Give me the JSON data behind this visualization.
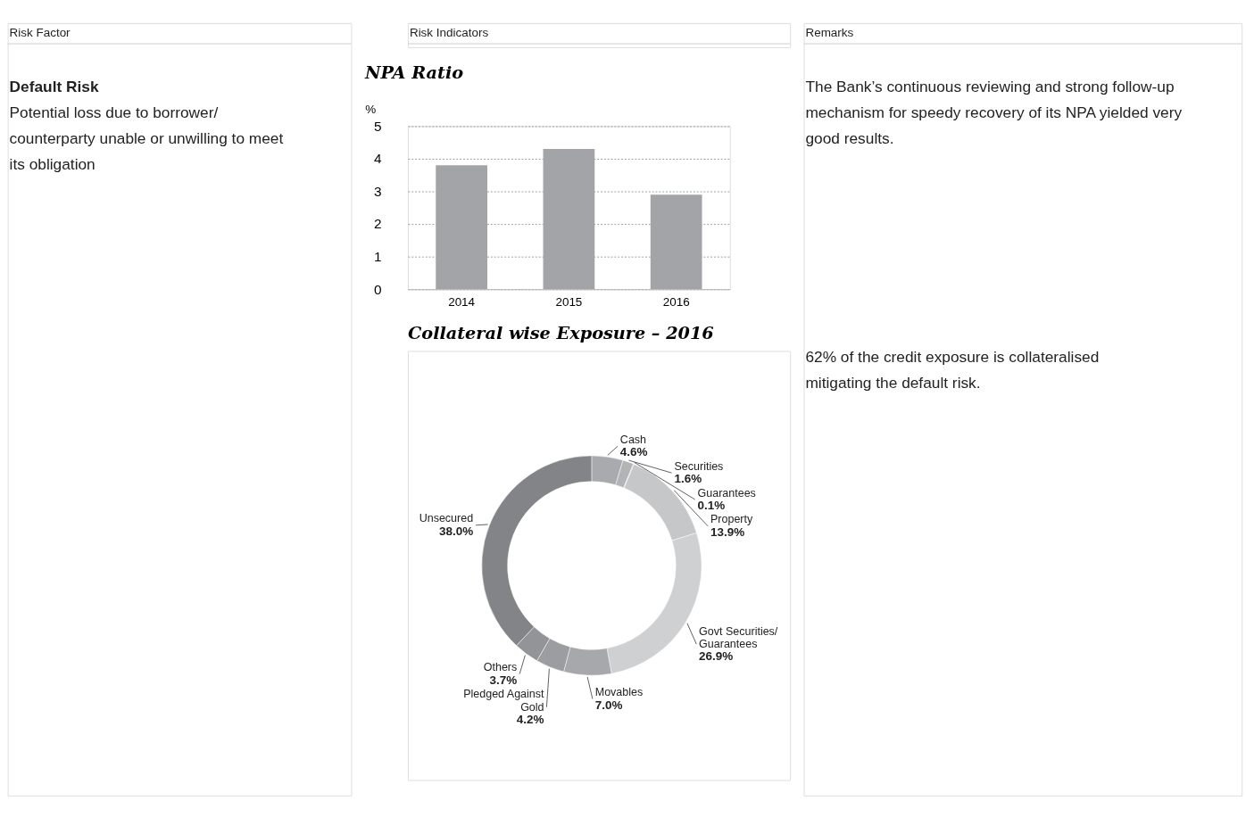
{
  "chart_data": [
    {
      "type": "other",
      "title": "Risk Factor",
      "annotations": [
        "Default Risk",
        "Potential loss due to borrower/ counterparty unable or unwilling to meet its obligation"
      ]
    },
    {
      "type": "other",
      "title": "Risk Indicators"
    },
    {
      "type": "bar",
      "title": "NPA Ratio",
      "ylabel": "%",
      "categories": [
        "2014",
        "2015",
        "2016"
      ],
      "values": [
        3.8,
        4.3,
        2.9
      ],
      "color": "#a3a4a7",
      "ylim": [
        0,
        5
      ],
      "yticks": [
        0,
        1,
        2,
        3,
        4,
        5
      ],
      "grid": "y"
    },
    {
      "type": "donut",
      "title": "Collateral wise Exposure – 2016",
      "categories": [
        "Cash",
        "Securities",
        "Guarantees",
        "Property",
        "Govt Securities/ Guarantees",
        "Movables",
        "Pledged Against Gold",
        "Others",
        "Unsecured"
      ],
      "values": [
        4.6,
        1.6,
        0.1,
        13.9,
        26.9,
        7.0,
        4.2,
        3.7,
        38.0
      ],
      "colors": [
        "#a9aaad",
        "#b3b4b6",
        "#b8b9bb",
        "#c6c7c9",
        "#cfd0d2",
        "#a7a8ab",
        "#9c9da0",
        "#939497",
        "#838487"
      ],
      "value_labels": [
        "4.6%",
        "1.6%",
        "0.1%",
        "13.9%",
        "26.9%",
        "7.0%",
        "4.2%",
        "3.7%",
        "38.0%"
      ]
    },
    {
      "type": "other",
      "title": "Remarks",
      "annotations": [
        "The Bank’s continuous reviewing and strong follow-up mechanism for speedy recovery of its NPA yielded very good results.",
        "62% of the credit exposure is collateralised mitigating the default risk."
      ]
    }
  ]
}
